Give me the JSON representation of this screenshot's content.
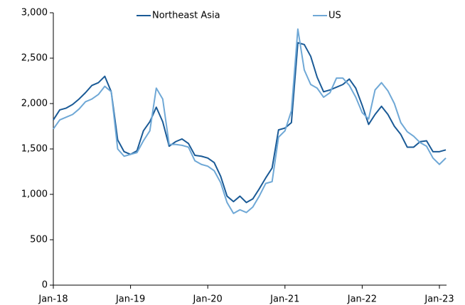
{
  "chart_data": {
    "type": "line",
    "categories": [
      "Jan-18",
      null,
      null,
      null,
      null,
      null,
      null,
      null,
      null,
      null,
      null,
      null,
      "Jan-19",
      null,
      null,
      null,
      null,
      null,
      null,
      null,
      null,
      null,
      null,
      null,
      "Jan-20",
      null,
      null,
      null,
      null,
      null,
      null,
      null,
      null,
      null,
      null,
      null,
      "Jan-21",
      null,
      null,
      null,
      null,
      null,
      null,
      null,
      null,
      null,
      null,
      null,
      "Jan-22",
      null,
      null,
      null,
      null,
      null,
      null,
      null,
      null,
      null,
      null,
      null,
      "Jan-23",
      null
    ],
    "series": [
      {
        "name": "Northeast Asia",
        "color": "#1a5a96",
        "values": [
          1820,
          1930,
          1950,
          1990,
          2050,
          2120,
          2200,
          2230,
          2300,
          2130,
          1600,
          1470,
          1440,
          1480,
          1700,
          1800,
          1960,
          1800,
          1530,
          1580,
          1610,
          1560,
          1430,
          1420,
          1400,
          1350,
          1200,
          980,
          920,
          980,
          910,
          950,
          1060,
          1180,
          1290,
          1710,
          1730,
          1790,
          2670,
          2650,
          2520,
          2290,
          2130,
          2150,
          2180,
          2210,
          2270,
          2170,
          1980,
          1770,
          1880,
          1970,
          1880,
          1750,
          1660,
          1520,
          1520,
          1580,
          1590,
          1470,
          1470,
          1490
        ]
      },
      {
        "name": "US",
        "color": "#6fa8d6",
        "values": [
          1720,
          1820,
          1850,
          1880,
          1940,
          2020,
          2050,
          2100,
          2190,
          2130,
          1500,
          1420,
          1440,
          1460,
          1590,
          1700,
          2170,
          2050,
          1550,
          1550,
          1540,
          1520,
          1370,
          1330,
          1310,
          1260,
          1130,
          910,
          790,
          830,
          800,
          860,
          980,
          1120,
          1140,
          1630,
          1700,
          1920,
          2820,
          2370,
          2210,
          2170,
          2070,
          2120,
          2280,
          2280,
          2200,
          2070,
          1900,
          1830,
          2150,
          2230,
          2140,
          2000,
          1790,
          1690,
          1640,
          1570,
          1530,
          1400,
          1330,
          1400
        ]
      }
    ],
    "ylim": [
      0,
      3000
    ],
    "yticks": [
      0,
      500,
      {
        "value": 1000,
        "label": "1,000"
      },
      {
        "value": 1500,
        "label": "1,500"
      },
      {
        "value": 2000,
        "label": "2,000"
      },
      {
        "value": 2500,
        "label": "2,500"
      },
      {
        "value": 3000,
        "label": "3,000"
      }
    ],
    "legend": "top",
    "grid": false
  }
}
